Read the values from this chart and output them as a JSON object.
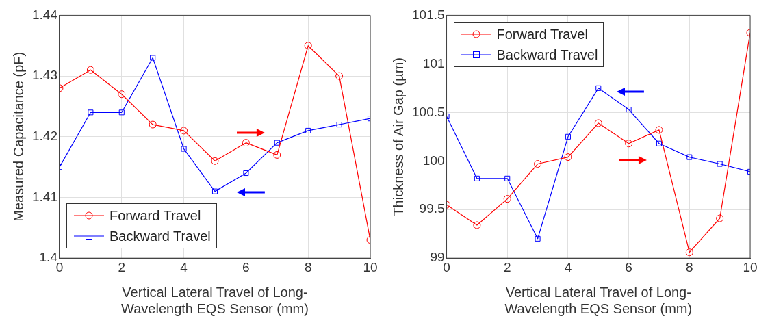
{
  "chart_data": [
    {
      "type": "line",
      "xlabel": "Vertical Lateral Travel of Long-Wavelength EQS Sensor (mm)",
      "ylabel": "Measured Capacitance (pF)",
      "x": [
        0,
        1,
        2,
        3,
        4,
        5,
        6,
        7,
        8,
        9,
        10
      ],
      "xlim": [
        0,
        10
      ],
      "xticks": [
        0,
        2,
        4,
        6,
        8,
        10
      ],
      "ylim": [
        1.4,
        1.44
      ],
      "yticks": [
        1.4,
        1.41,
        1.42,
        1.43,
        1.44
      ],
      "grid": true,
      "legend": "bottom left",
      "line_style": "solid",
      "series": [
        {
          "name": "Forward Travel",
          "color": "#ff0000",
          "marker": "circle",
          "values": [
            1.428,
            1.431,
            1.427,
            1.422,
            1.421,
            1.416,
            1.419,
            1.417,
            1.435,
            1.43,
            1.403
          ]
        },
        {
          "name": "Backward Travel",
          "color": "#0000ff",
          "marker": "square",
          "values": [
            1.415,
            1.424,
            1.424,
            1.433,
            1.418,
            1.411,
            1.414,
            1.419,
            1.421,
            1.422,
            1.423
          ]
        }
      ]
    },
    {
      "type": "line",
      "xlabel": "Vertical Lateral Travel of Long-Wavelength EQS Sensor (mm)",
      "ylabel": "Thickness of Air Gap (µm)",
      "x": [
        0,
        1,
        2,
        3,
        4,
        5,
        6,
        7,
        8,
        9,
        10
      ],
      "xlim": [
        0,
        10
      ],
      "xticks": [
        0,
        2,
        4,
        6,
        8,
        10
      ],
      "ylim": [
        99,
        101.5
      ],
      "yticks": [
        99,
        99.5,
        100,
        100.5,
        101,
        101.5
      ],
      "grid": true,
      "legend": "top left",
      "line_style": "solid",
      "series": [
        {
          "name": "Forward Travel",
          "color": "#ff0000",
          "marker": "circle",
          "values": [
            99.55,
            99.34,
            99.61,
            99.97,
            100.04,
            100.39,
            100.18,
            100.32,
            99.06,
            99.41,
            101.32
          ]
        },
        {
          "name": "Backward Travel",
          "color": "#0000ff",
          "marker": "square",
          "values": [
            100.46,
            99.82,
            99.82,
            99.2,
            100.25,
            100.75,
            100.53,
            100.18,
            100.04,
            99.97,
            99.89
          ]
        }
      ]
    }
  ]
}
